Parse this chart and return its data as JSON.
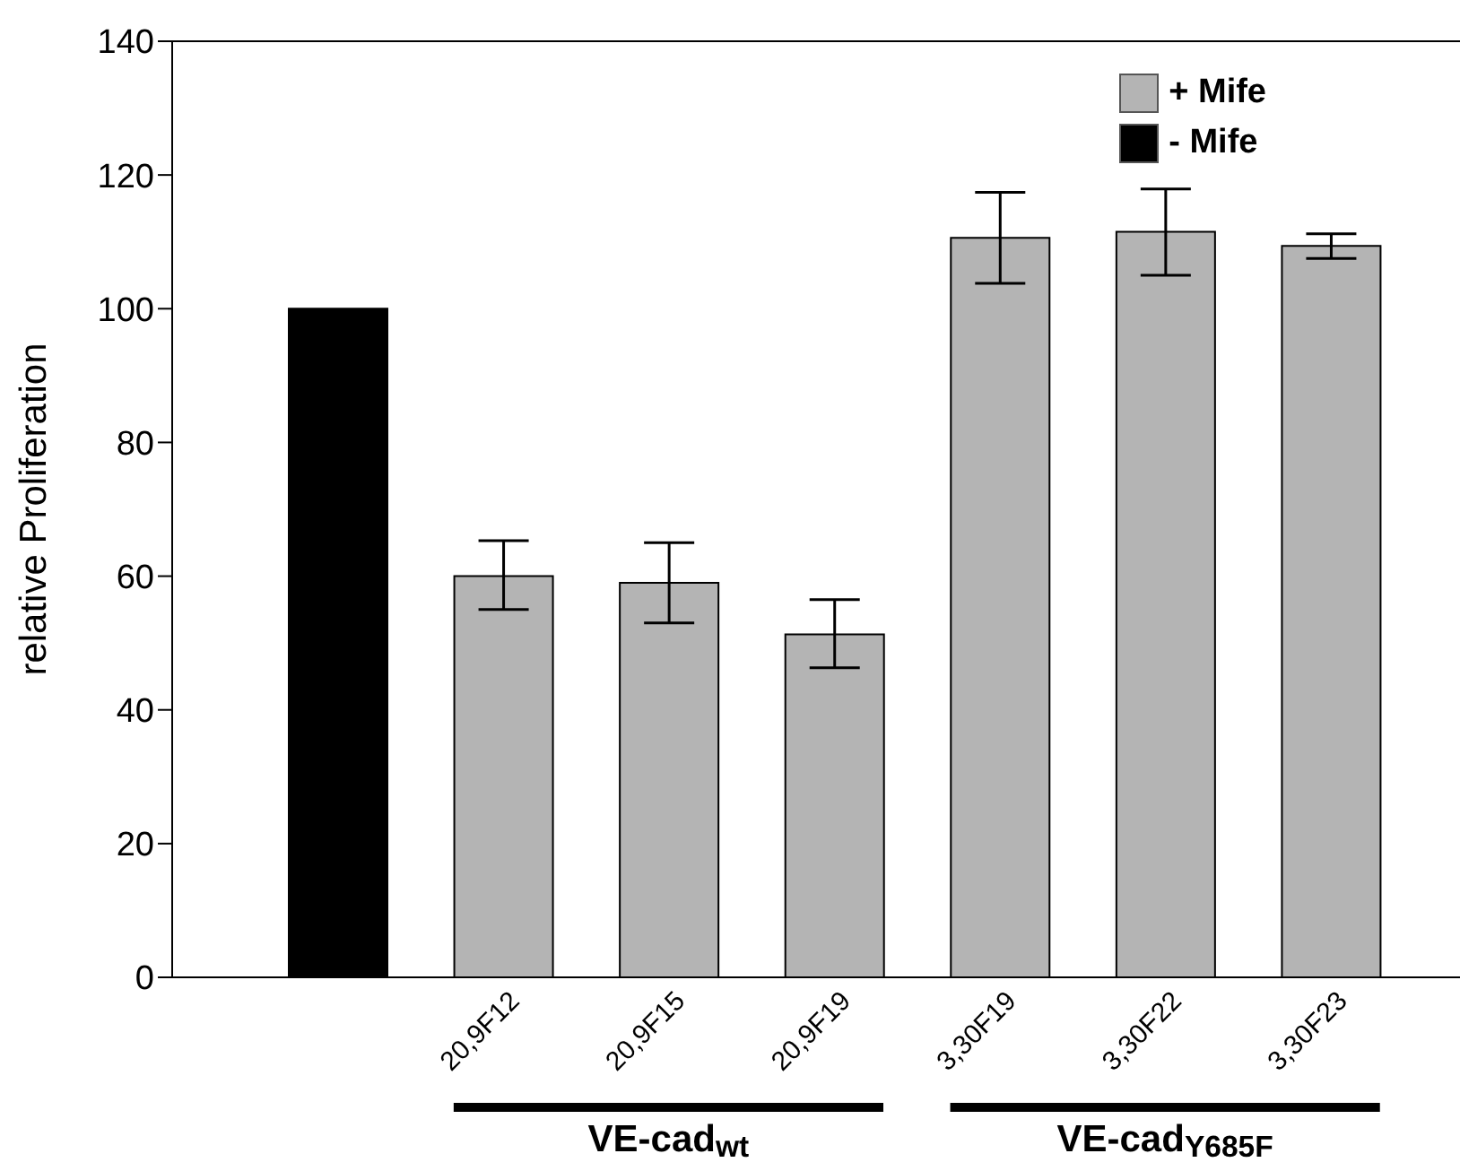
{
  "chart_data": {
    "type": "bar",
    "ylabel": "relative Proliferation",
    "categories": [
      null,
      "20,9F12",
      "20,9F15",
      "20,9F19",
      "3,30F19",
      "3,30F22",
      "3,30F23"
    ],
    "series": [
      {
        "name": "+ Mife",
        "color": "#b4b4b4",
        "values": [
          null,
          60,
          59,
          51.3,
          110.6,
          111.5,
          109.4
        ],
        "errors": [
          null,
          [
            55,
            65.3
          ],
          [
            53,
            65
          ],
          [
            46.3,
            56.5
          ],
          [
            103.8,
            117.4
          ],
          [
            105,
            117.9
          ],
          [
            107.5,
            111.2
          ]
        ]
      },
      {
        "name": "- Mife",
        "color": "#000000",
        "values": [
          100,
          null,
          null,
          null,
          null,
          null,
          null
        ]
      }
    ],
    "ylim": [
      0,
      140
    ],
    "yticks": [
      0,
      20,
      40,
      60,
      80,
      100,
      120,
      140
    ],
    "grid": false,
    "legend": "top right",
    "annotations": [
      "VE-cad$_{wt}$",
      "VE-cad$_{Y685F}$"
    ]
  }
}
